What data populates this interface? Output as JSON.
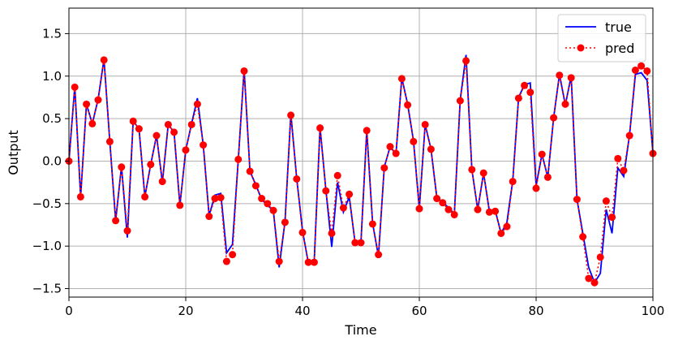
{
  "chart_data": {
    "type": "line",
    "title": "",
    "xlabel": "Time",
    "ylabel": "Output",
    "xlim": [
      0,
      100
    ],
    "ylim": [
      -1.6,
      1.8
    ],
    "xticks": [
      0,
      20,
      40,
      60,
      80,
      100
    ],
    "xtick_labels": [
      "0",
      "20",
      "40",
      "60",
      "80",
      "100"
    ],
    "yticks": [
      -1.5,
      -1.0,
      -0.5,
      0.0,
      0.5,
      1.0,
      1.5
    ],
    "ytick_labels": [
      "−1.5",
      "−1.0",
      "−0.5",
      "0.0",
      "0.5",
      "1.0",
      "1.5"
    ],
    "grid": true,
    "legend_position": "top-right",
    "series": [
      {
        "name": "true",
        "color": "#0000ff",
        "style": "solid",
        "x": [
          0,
          1,
          2,
          3,
          4,
          5,
          6,
          7,
          8,
          9,
          10,
          11,
          12,
          13,
          14,
          15,
          16,
          17,
          18,
          19,
          20,
          21,
          22,
          23,
          24,
          25,
          26,
          27,
          28,
          29,
          30,
          31,
          32,
          33,
          34,
          35,
          36,
          37,
          38,
          39,
          40,
          41,
          42,
          43,
          44,
          45,
          46,
          47,
          48,
          49,
          50,
          51,
          52,
          53,
          54,
          55,
          56,
          57,
          58,
          59,
          60,
          61,
          62,
          63,
          64,
          65,
          66,
          67,
          68,
          69,
          70,
          71,
          72,
          73,
          74,
          75,
          76,
          77,
          78,
          79,
          80,
          81,
          82,
          83,
          84,
          85,
          86,
          87,
          88,
          89,
          90,
          91,
          92,
          93,
          94,
          95,
          96,
          97,
          98,
          99,
          100
        ],
        "values": [
          0.0,
          0.88,
          -0.42,
          0.67,
          0.44,
          0.73,
          1.2,
          0.23,
          -0.7,
          -0.06,
          -0.9,
          0.47,
          0.38,
          -0.42,
          -0.04,
          0.3,
          -0.25,
          0.43,
          0.34,
          -0.52,
          0.13,
          0.44,
          0.74,
          0.19,
          -0.64,
          -0.4,
          -0.38,
          -1.08,
          -0.98,
          0.02,
          1.08,
          -0.12,
          -0.28,
          -0.45,
          -0.52,
          -0.58,
          -1.25,
          -0.71,
          0.56,
          -0.2,
          -0.82,
          -1.2,
          -1.18,
          0.4,
          -0.34,
          -1.01,
          -0.25,
          -0.6,
          -0.42,
          -0.96,
          -0.96,
          0.36,
          -0.73,
          -1.12,
          -0.07,
          0.17,
          0.08,
          0.98,
          0.67,
          0.24,
          -0.56,
          0.43,
          0.14,
          -0.43,
          -0.48,
          -0.55,
          -0.62,
          0.72,
          1.25,
          -0.1,
          -0.57,
          -0.14,
          -0.59,
          -0.58,
          -0.85,
          -0.72,
          -0.23,
          0.75,
          0.9,
          0.92,
          -0.29,
          0.08,
          -0.19,
          0.51,
          1.02,
          0.66,
          1.0,
          -0.45,
          -0.85,
          -1.25,
          -1.43,
          -1.32,
          -0.57,
          -0.85,
          -0.08,
          -0.18,
          0.31,
          1.02,
          1.04,
          0.95,
          0.1
        ]
      },
      {
        "name": "pred",
        "color": "#ff0000",
        "style": "dotted",
        "x": [
          0,
          1,
          2,
          3,
          4,
          5,
          6,
          7,
          8,
          9,
          10,
          11,
          12,
          13,
          14,
          15,
          16,
          17,
          18,
          19,
          20,
          21,
          22,
          23,
          24,
          25,
          26,
          27,
          28,
          29,
          30,
          31,
          32,
          33,
          34,
          35,
          36,
          37,
          38,
          39,
          40,
          41,
          42,
          43,
          44,
          45,
          46,
          47,
          48,
          49,
          50,
          51,
          52,
          53,
          54,
          55,
          56,
          57,
          58,
          59,
          60,
          61,
          62,
          63,
          64,
          65,
          66,
          67,
          68,
          69,
          70,
          71,
          72,
          73,
          74,
          75,
          76,
          77,
          78,
          79,
          80,
          81,
          82,
          83,
          84,
          85,
          86,
          87,
          88,
          89,
          90,
          91,
          92,
          93,
          94,
          95,
          96,
          97,
          98,
          99,
          100
        ],
        "values": [
          0.0,
          0.87,
          -0.42,
          0.67,
          0.44,
          0.72,
          1.19,
          0.23,
          -0.7,
          -0.07,
          -0.82,
          0.47,
          0.38,
          -0.42,
          -0.04,
          0.3,
          -0.24,
          0.43,
          0.34,
          -0.52,
          0.13,
          0.43,
          0.67,
          0.19,
          -0.65,
          -0.44,
          -0.43,
          -1.18,
          -1.1,
          0.02,
          1.06,
          -0.12,
          -0.29,
          -0.44,
          -0.5,
          -0.58,
          -1.18,
          -0.72,
          0.54,
          -0.21,
          -0.84,
          -1.19,
          -1.19,
          0.39,
          -0.35,
          -0.85,
          -0.17,
          -0.55,
          -0.39,
          -0.96,
          -0.96,
          0.36,
          -0.74,
          -1.1,
          -0.08,
          0.17,
          0.09,
          0.97,
          0.66,
          0.23,
          -0.56,
          0.43,
          0.14,
          -0.44,
          -0.49,
          -0.57,
          -0.63,
          0.71,
          1.18,
          -0.1,
          -0.57,
          -0.14,
          -0.6,
          -0.59,
          -0.85,
          -0.77,
          -0.24,
          0.74,
          0.89,
          0.81,
          -0.32,
          0.08,
          -0.19,
          0.51,
          1.01,
          0.67,
          0.98,
          -0.45,
          -0.89,
          -1.38,
          -1.43,
          -1.13,
          -0.47,
          -0.66,
          0.03,
          -0.11,
          0.3,
          1.07,
          1.12,
          1.06,
          0.09
        ]
      }
    ]
  }
}
